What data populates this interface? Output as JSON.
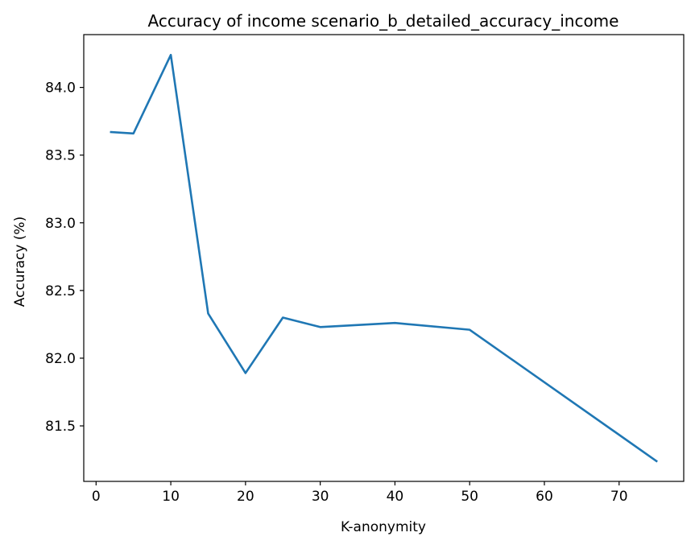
{
  "chart_data": {
    "type": "line",
    "title": "Accuracy of income scenario_b_detailed_accuracy_income",
    "xlabel": "K-anonymity",
    "ylabel": "Accuracy (%)",
    "xlim": [
      -1.65,
      78.65
    ],
    "ylim": [
      81.09,
      84.39
    ],
    "xticks": [
      0,
      10,
      20,
      30,
      40,
      50,
      60,
      70
    ],
    "xtick_labels": [
      "0",
      "10",
      "20",
      "30",
      "40",
      "50",
      "60",
      "70"
    ],
    "yticks": [
      81.5,
      82.0,
      82.5,
      83.0,
      83.5,
      84.0
    ],
    "ytick_labels": [
      "81.5",
      "82.0",
      "82.5",
      "83.0",
      "83.5",
      "84.0"
    ],
    "grid": false,
    "legend": "none",
    "series": [
      {
        "color": "#1f77b4",
        "x": [
          2,
          5,
          10,
          15,
          20,
          25,
          30,
          40,
          50,
          75
        ],
        "y": [
          83.67,
          83.66,
          84.24,
          82.33,
          81.89,
          82.3,
          82.23,
          82.26,
          82.21,
          81.24
        ]
      }
    ]
  }
}
